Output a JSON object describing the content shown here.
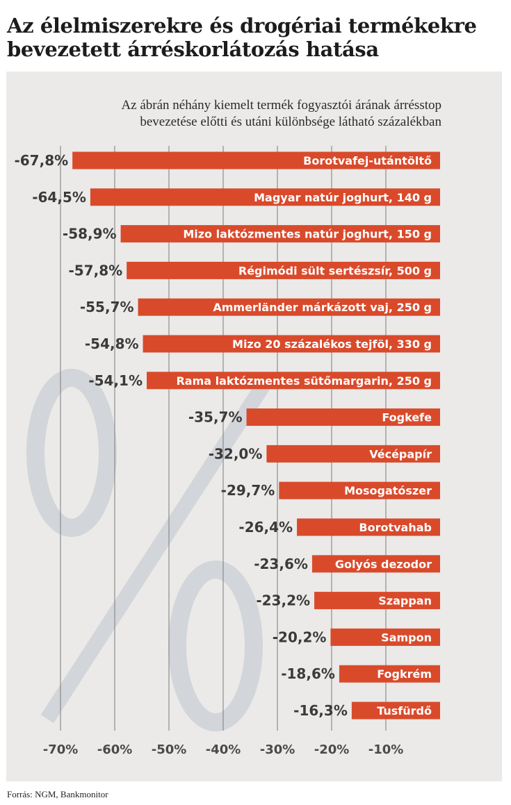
{
  "title_lines": [
    "Az élelmiszerekre és drogériai termékekre",
    "bevezetett árréskorlátozás hatása"
  ],
  "subtitle_lines": [
    "Az ábrán néhány kiemelt termék fogyasztói árának árrésstop",
    "bevezetése előtti és utáni különbsége látható százalékban"
  ],
  "source": "Forrás: NGM, Bankmonitor",
  "colors": {
    "bar": "#d94a2b",
    "panel": "#ebeae8",
    "grid": "#7a7a7a",
    "watermark": "#d2d5d9"
  },
  "watermark_symbol": "percent-sign",
  "chart_data": {
    "type": "bar",
    "orientation": "horizontal",
    "categories": [
      "Borotvafej-utántöltő",
      "Magyar natúr joghurt, 140 g",
      "Mizo laktózmentes natúr joghurt, 150 g",
      "Régimódi sült sertészsír, 500 g",
      "Ammerländer márkázott vaj, 250 g",
      "Mizo 20 százalékos tejföl, 330 g",
      "Rama laktózmentes sütőmargarin, 250 g",
      "Fogkefe",
      "Vécépapír",
      "Mosogatószer",
      "Borotvahab",
      "Golyós dezodor",
      "Szappan",
      "Sampon",
      "Fogkrém",
      "Tusfürdő"
    ],
    "values": [
      -67.8,
      -64.5,
      -58.9,
      -57.8,
      -55.7,
      -54.8,
      -54.1,
      -35.7,
      -32.0,
      -29.7,
      -26.4,
      -23.6,
      -23.2,
      -20.2,
      -18.6,
      -16.3
    ],
    "value_labels": [
      "-67,8%",
      "-64,5%",
      "-58,9%",
      "-57,8%",
      "-55,7%",
      "-54,8%",
      "-54,1%",
      "-35,7%",
      "-32,0%",
      "-29,7%",
      "-26,4%",
      "-23,6%",
      "-23,2%",
      "-20,2%",
      "-18,6%",
      "-16,3%"
    ],
    "xticks": [
      -70,
      -60,
      -50,
      -40,
      -30,
      -20,
      -10
    ],
    "xtick_labels": [
      "-70%",
      "-60%",
      "-50%",
      "-40%",
      "-30%",
      "-20%",
      "-10%"
    ],
    "grid": true
  }
}
